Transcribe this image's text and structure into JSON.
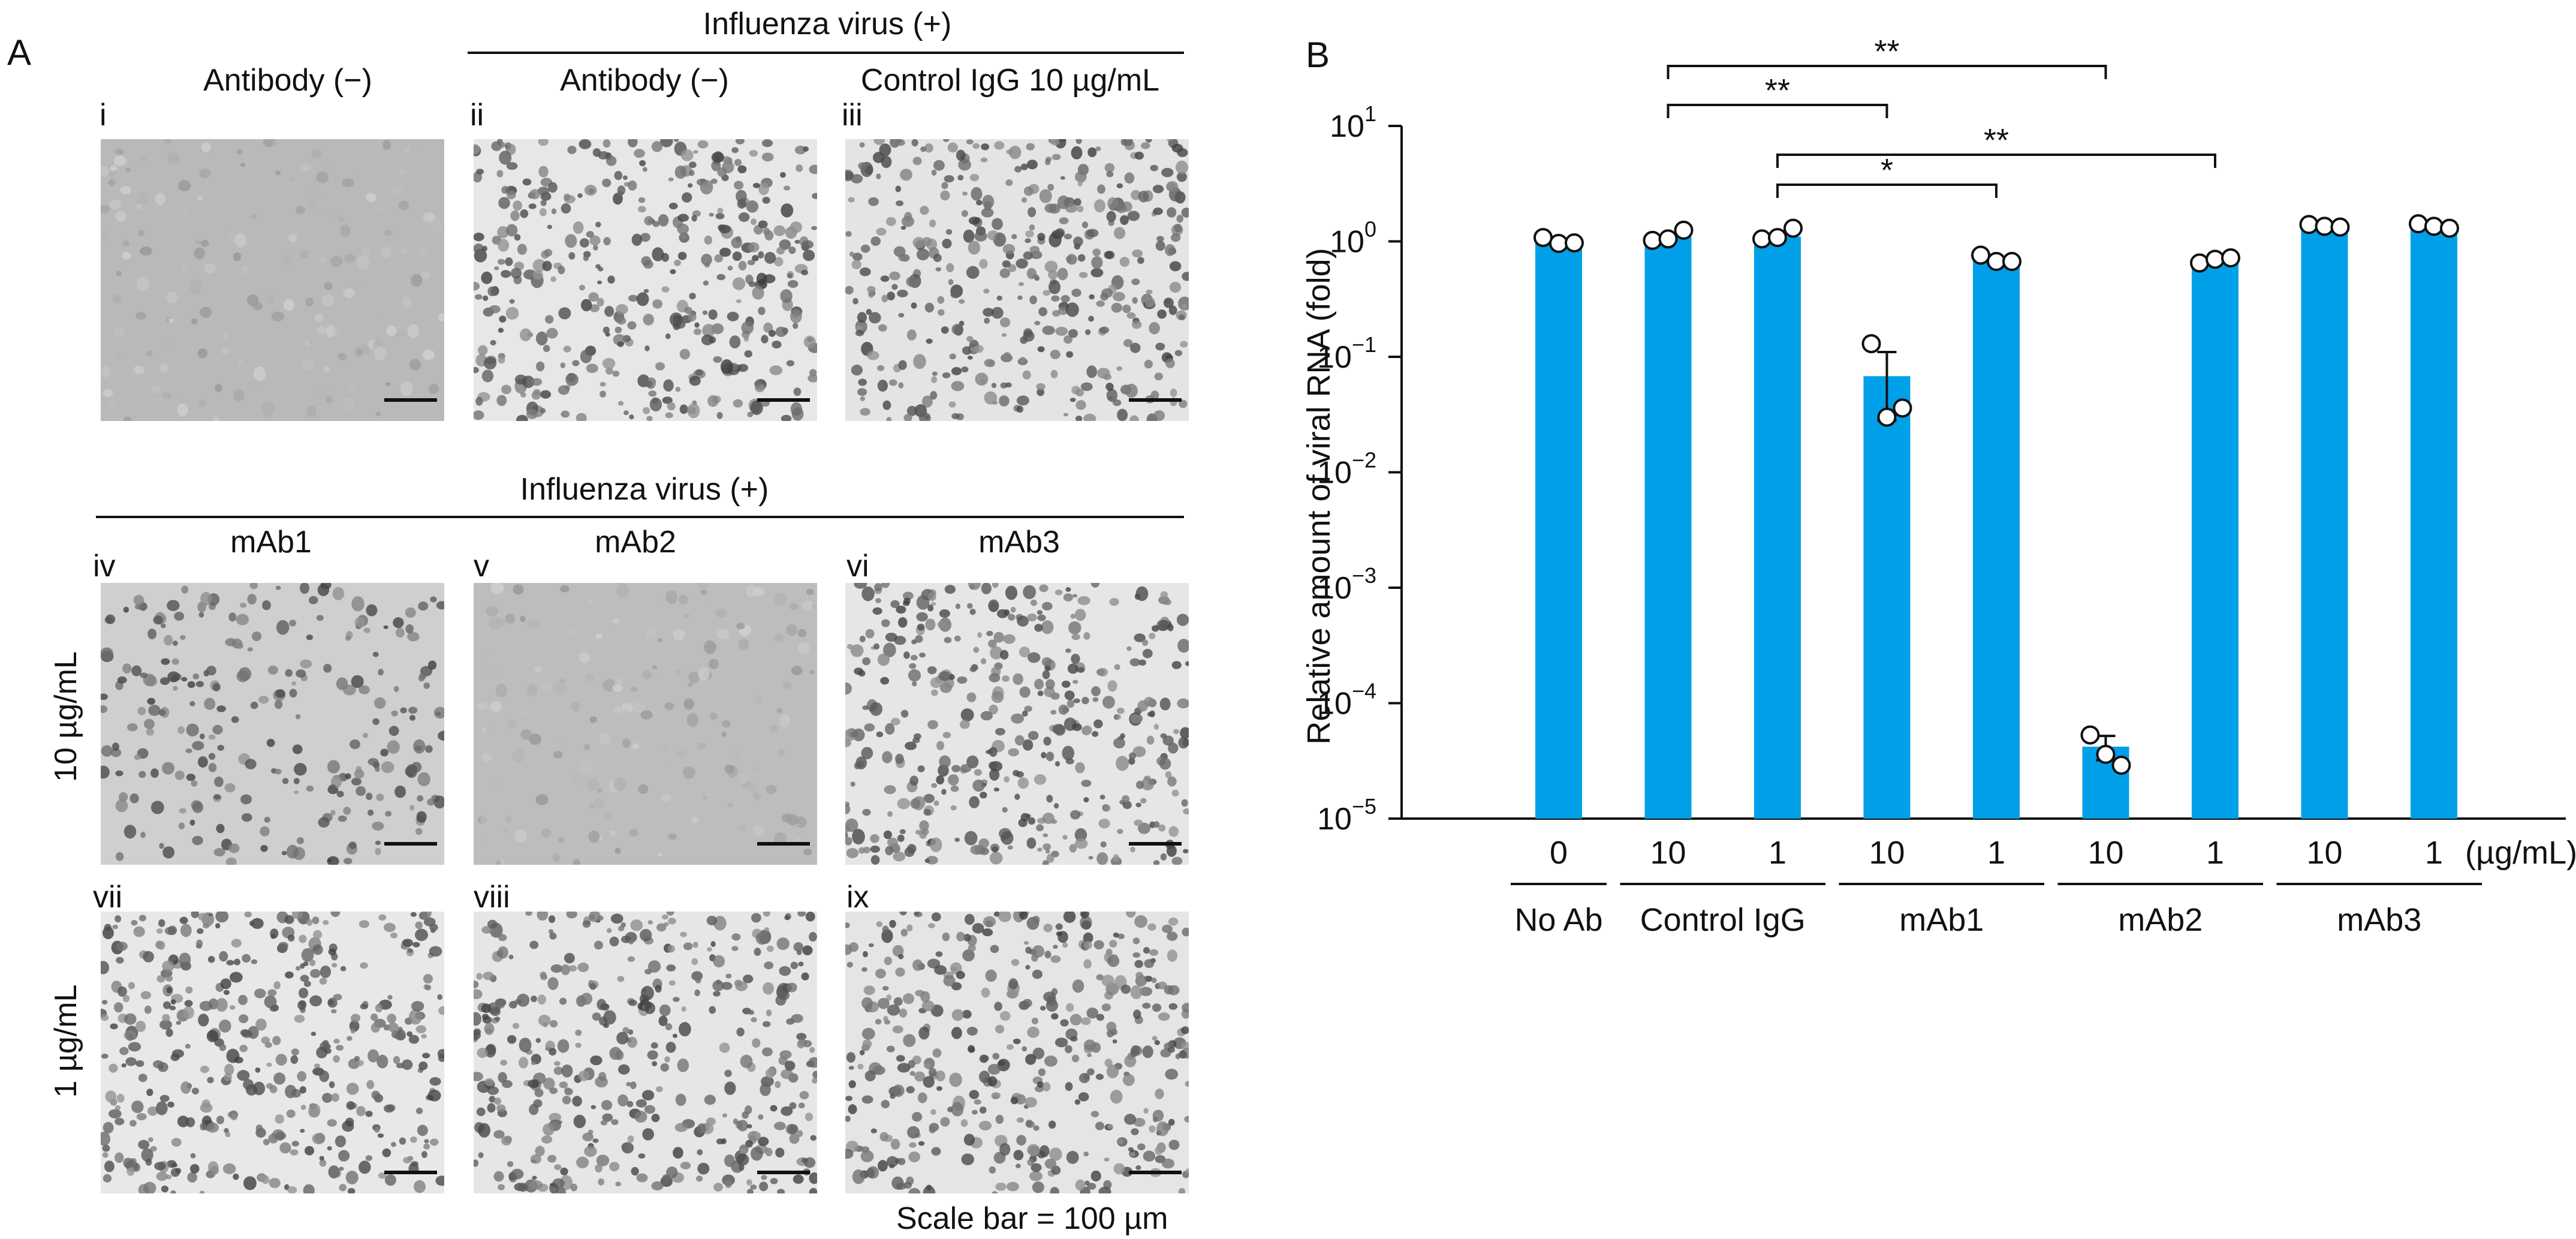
{
  "panel_a": {
    "letter": "A",
    "header_top_group": "Influenza virus (+)",
    "header_bottom_group": "Influenza virus (+)",
    "columns_top": [
      "Antibody (−)",
      "Antibody (−)",
      "Control IgG 10 µg/mL"
    ],
    "columns_bottom": [
      "mAb1",
      "mAb2",
      "mAb3"
    ],
    "row_labels": [
      "10 µg/mL",
      "1 µg/mL"
    ],
    "numerals": [
      "i",
      "ii",
      "iii",
      "iv",
      "v",
      "vi",
      "vii",
      "viii",
      "ix"
    ],
    "scale_note": "Scale bar = 100 µm",
    "micrographs": [
      {
        "id": "i",
        "density": "low",
        "tone": "#b9b9b9"
      },
      {
        "id": "ii",
        "density": "high",
        "tone": "#e7e7e7"
      },
      {
        "id": "iii",
        "density": "high",
        "tone": "#e4e4e4"
      },
      {
        "id": "iv",
        "density": "medium",
        "tone": "#cfcfcf"
      },
      {
        "id": "v",
        "density": "low",
        "tone": "#bdbdbd"
      },
      {
        "id": "vi",
        "density": "high",
        "tone": "#e6e6e6"
      },
      {
        "id": "vii",
        "density": "high",
        "tone": "#e8e8e8"
      },
      {
        "id": "viii",
        "density": "high",
        "tone": "#e6e6e6"
      },
      {
        "id": "ix",
        "density": "high",
        "tone": "#e5e5e5"
      }
    ]
  },
  "panel_b": {
    "letter": "B"
  },
  "chart_data": {
    "type": "bar",
    "ylabel": "Relative amount of viral RNA (fold)",
    "yscale": "log",
    "ylim": [
      1e-05,
      10
    ],
    "ytick_exponents": [
      1,
      0,
      -1,
      -2,
      -3,
      -4,
      -5
    ],
    "ytick_base": "10",
    "bar_color": "#00a0e9",
    "unit_label": "(µg/mL)",
    "groups": [
      "No Ab",
      "Control IgG",
      "mAb1",
      "mAb2",
      "mAb3"
    ],
    "categories": [
      "0",
      "10",
      "1",
      "10",
      "1",
      "10",
      "1",
      "10",
      "1"
    ],
    "category_group": [
      0,
      1,
      1,
      2,
      2,
      3,
      3,
      4,
      4
    ],
    "values": [
      1.0,
      1.1,
      1.1,
      0.068,
      0.7,
      4.2e-05,
      0.68,
      1.35,
      1.38
    ],
    "error_low": [
      null,
      null,
      null,
      0.028,
      null,
      3.2e-05,
      null,
      null,
      null
    ],
    "error_high": [
      null,
      null,
      null,
      0.11,
      null,
      5.2e-05,
      null,
      null,
      null
    ],
    "points": [
      [
        1.08,
        0.96,
        0.97
      ],
      [
        1.02,
        1.05,
        1.25
      ],
      [
        1.05,
        1.08,
        1.3
      ],
      [
        0.13,
        0.03,
        0.036
      ],
      [
        0.76,
        0.67,
        0.67
      ],
      [
        5.3e-05,
        3.6e-05,
        2.9e-05
      ],
      [
        0.65,
        0.7,
        0.72
      ],
      [
        1.4,
        1.35,
        1.33
      ],
      [
        1.42,
        1.35,
        1.3
      ]
    ],
    "significance": [
      {
        "from": 1,
        "to": 5,
        "label": "**"
      },
      {
        "from": 1,
        "to": 3,
        "label": "**"
      },
      {
        "from": 2,
        "to": 6,
        "label": "**"
      },
      {
        "from": 2,
        "to": 4,
        "label": "*"
      }
    ]
  }
}
